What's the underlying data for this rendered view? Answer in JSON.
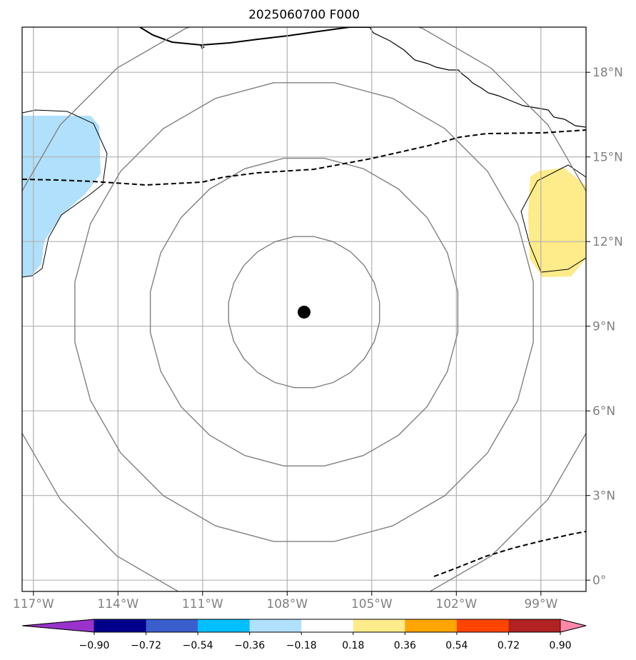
{
  "title": "2025060700 F000",
  "map": {
    "lon_range": [
      -117.4,
      -97.4
    ],
    "lat_range": [
      -0.4,
      19.6
    ],
    "lon_tick_labels": [
      "117°W",
      "114°W",
      "111°W",
      "108°W",
      "105°W",
      "102°W",
      "99°W"
    ],
    "lon_tick_values": [
      -117,
      -114,
      -111,
      -108,
      -105,
      -102,
      -99
    ],
    "lat_tick_labels": [
      "0°",
      "3°N",
      "6°N",
      "9°N",
      "12°N",
      "15°N",
      "18°N"
    ],
    "lat_tick_values": [
      0,
      3,
      6,
      9,
      12,
      15,
      18
    ],
    "grid": true,
    "center_marker": {
      "lon": -107.4,
      "lat": 9.5
    },
    "range_rings_deg": [
      2.7,
      5.5,
      8.2,
      10.9
    ],
    "colors": {
      "grid": "#b0b0b0",
      "rings": "#808080",
      "negative_fill": "#b0e0fb",
      "positive_fill": "#feeb8a",
      "frame": "#000000"
    }
  },
  "colorbar": {
    "labels": [
      "−0.90",
      "−0.72",
      "−0.54",
      "−0.36",
      "−0.18",
      "0.18",
      "0.36",
      "0.54",
      "0.72",
      "0.90"
    ],
    "colors": [
      "#9933cc",
      "#00008b",
      "#3a5fcd",
      "#00bfff",
      "#b0e0fb",
      "#ffffff",
      "#feeb8a",
      "#ffa500",
      "#ff4500",
      "#b22222",
      "#ff88aa"
    ],
    "extend_min_color": "#9933cc",
    "extend_max_color": "#ff88aa"
  }
}
